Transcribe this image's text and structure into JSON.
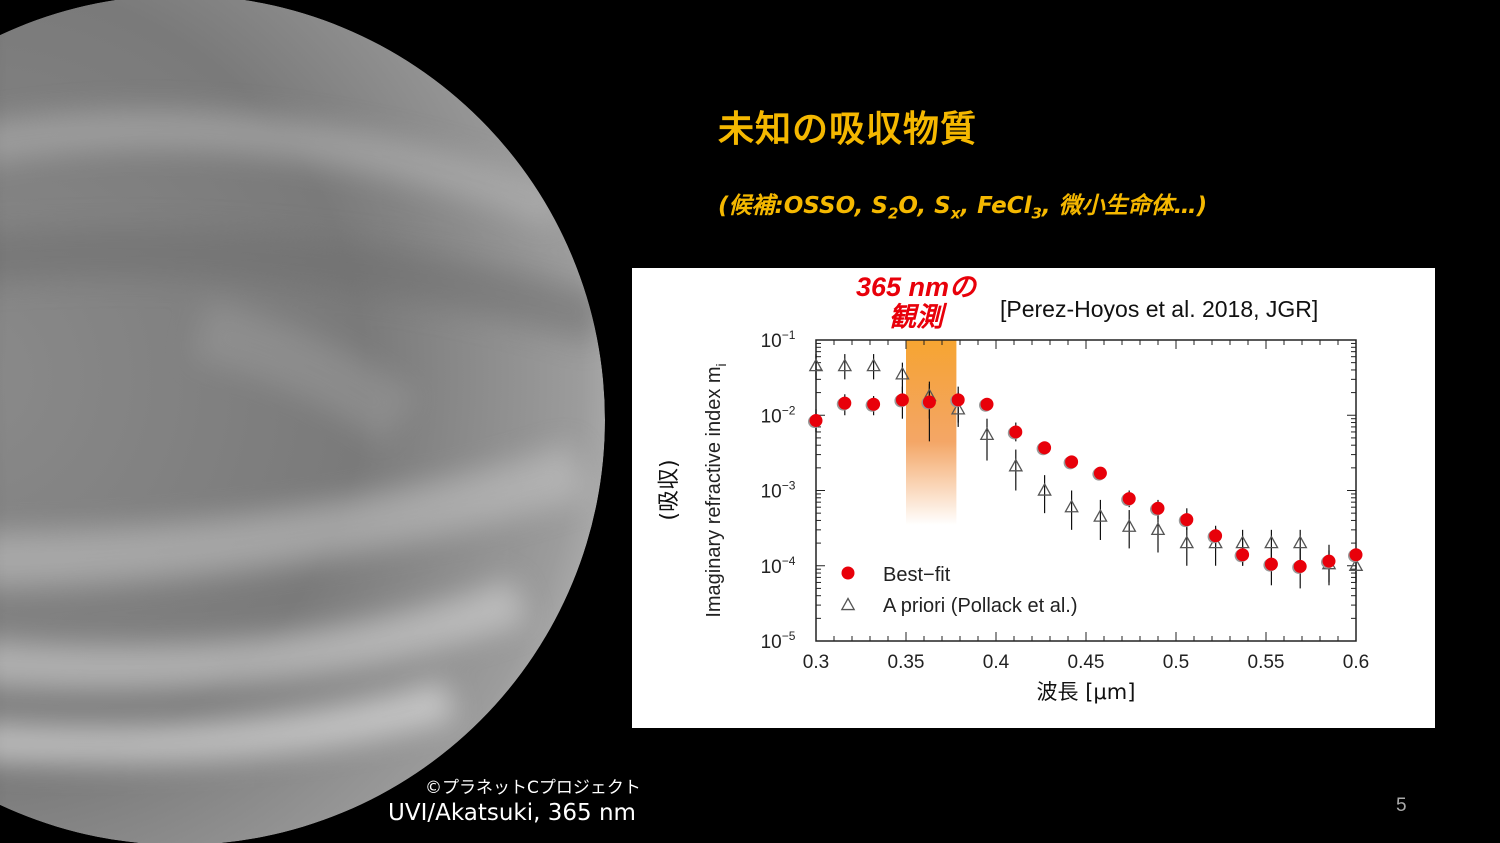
{
  "slide": {
    "title": "未知の吸収物質",
    "subtitle": {
      "prefix": "(候補:OSSO, S",
      "s2o_sub": "2",
      "s2o_rest": "O, S",
      "sx_sub": "x",
      "mid": ", FeCl",
      "fecl_sub": "3",
      "suffix": ", 微小生命体…)"
    },
    "observation_label_line1": "365 nmの",
    "observation_label_line2": "観測",
    "citation": "[Perez-Hoyos et al. 2018, JGR]",
    "image_credit": "©プラネットCプロジェクト",
    "image_caption": "UVI/Akatsuki, 365 nm",
    "page_number": "5"
  },
  "colors": {
    "title": "#f5b800",
    "observation": "#e8000a",
    "highlight_band": "#f6a531",
    "best_fit": "#e8000a",
    "a_priori": "#555555"
  },
  "chart_data": {
    "type": "scatter",
    "xlabel": "波長 [μm]",
    "ylabel": "Imaginary refractive index m",
    "ylabel_sub": "i",
    "ylabel_annotation": "(吸収)",
    "xlim": [
      0.3,
      0.6
    ],
    "ylim": [
      1e-05,
      0.1
    ],
    "yscale": "log",
    "x_ticks": [
      "0.3",
      "0.35",
      "0.4",
      "0.45",
      "0.5",
      "0.55",
      "0.6"
    ],
    "y_ticks": [
      {
        "base": "10",
        "exp": "−1",
        "value": 0.1
      },
      {
        "base": "10",
        "exp": "−2",
        "value": 0.01
      },
      {
        "base": "10",
        "exp": "−3",
        "value": 0.001
      },
      {
        "base": "10",
        "exp": "−4",
        "value": 0.0001
      },
      {
        "base": "10",
        "exp": "−5",
        "value": 1e-05
      }
    ],
    "highlight_band": [
      0.35,
      0.378
    ],
    "legend_placement": "bottom-left",
    "series": [
      {
        "name": "Best−fit",
        "marker": "circle",
        "x": [
          0.3,
          0.316,
          0.332,
          0.348,
          0.363,
          0.379,
          0.395,
          0.411,
          0.427,
          0.442,
          0.458,
          0.474,
          0.49,
          0.506,
          0.522,
          0.537,
          0.553,
          0.569,
          0.585,
          0.6
        ],
        "y": [
          0.0085,
          0.0145,
          0.014,
          0.016,
          0.015,
          0.016,
          0.014,
          0.006,
          0.0037,
          0.0024,
          0.0017,
          0.00078,
          0.00058,
          0.00041,
          0.00025,
          0.00014,
          0.000105,
          9.8e-05,
          0.000115,
          0.00014
        ],
        "err_low": [
          0.006,
          0.01,
          0.01,
          0.009,
          0.0045,
          0.008,
          null,
          0.0045,
          null,
          null,
          null,
          0.0006,
          0.00042,
          0.0003,
          0.00018,
          0.0001,
          5.5e-05,
          5e-05,
          5.5e-05,
          null
        ],
        "err_high": [
          0.012,
          0.019,
          0.018,
          0.024,
          0.026,
          0.024,
          0.02,
          0.008,
          null,
          null,
          null,
          0.001,
          0.00075,
          0.00058,
          0.00034,
          0.00021,
          0.00017,
          0.00017,
          0.00019,
          null
        ]
      },
      {
        "name": "A priori (Pollack et al.)",
        "marker": "triangle",
        "x": [
          0.3,
          0.316,
          0.332,
          0.348,
          0.363,
          0.379,
          0.395,
          0.411,
          0.427,
          0.442,
          0.458,
          0.474,
          0.49,
          0.506,
          0.522,
          0.537,
          0.553,
          0.569,
          0.585,
          0.6
        ],
        "y": [
          0.045,
          0.045,
          0.045,
          0.035,
          0.018,
          0.012,
          0.0055,
          0.0021,
          0.001,
          0.0006,
          0.00045,
          0.00033,
          0.0003,
          0.0002,
          0.0002,
          0.0002,
          0.0002,
          0.0002,
          0.000105,
          0.0001
        ],
        "err_low": [
          0.03,
          0.03,
          0.03,
          0.02,
          0.009,
          0.007,
          0.0025,
          0.001,
          0.0005,
          0.0003,
          0.00022,
          0.00017,
          0.00015,
          0.0001,
          0.0001,
          0.0001,
          0.0001,
          0.0001,
          6e-05,
          6e-05
        ],
        "err_high": [
          0.065,
          0.065,
          0.065,
          0.05,
          0.028,
          0.02,
          0.009,
          0.0035,
          0.0016,
          0.001,
          0.00075,
          0.00055,
          0.0005,
          0.00032,
          0.00032,
          0.0003,
          0.0003,
          0.0003,
          0.00016,
          0.00015
        ]
      }
    ]
  }
}
